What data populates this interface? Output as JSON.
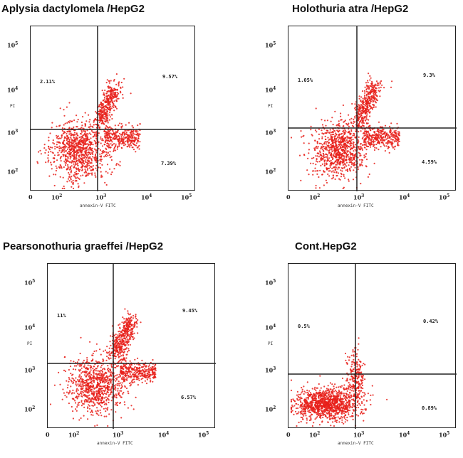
{
  "chart_data": [
    {
      "type": "scatter",
      "title": "Aplysia dactylomela /HepG2",
      "xlabel": "annexin-V FITC",
      "ylabel": "PI",
      "x_scale": "log",
      "y_scale": "log",
      "quadrants": {
        "upper_left": "2.11%",
        "upper_right": "9.57%",
        "lower_right": "7.39%"
      },
      "cluster": "elongated"
    },
    {
      "type": "scatter",
      "title": "Holothuria atra /HepG2",
      "xlabel": "annexin-V FITC",
      "ylabel": "PI",
      "x_scale": "log",
      "y_scale": "log",
      "quadrants": {
        "upper_left": "1.05%",
        "upper_right": "9.3%",
        "lower_right": "4.59%"
      },
      "cluster": "elongated"
    },
    {
      "type": "scatter",
      "title": "Pearsonothuria graeffei /HepG2",
      "xlabel": "annexin-V FITC",
      "ylabel": "PI",
      "x_scale": "log",
      "y_scale": "log",
      "quadrants": {
        "upper_left": "11%",
        "upper_right": "9.45%",
        "lower_right": "6.57%"
      },
      "cluster": "elongated"
    },
    {
      "type": "scatter",
      "title": "Cont.HepG2",
      "xlabel": "annexin-V FITC",
      "ylabel": "PI",
      "x_scale": "log",
      "y_scale": "log",
      "quadrants": {
        "upper_left": "0.5%",
        "upper_right": "0.42%",
        "lower_right": "0.89%"
      },
      "cluster": "compact"
    }
  ],
  "colors": {
    "dots": "#e8201a",
    "axes": "#222222"
  },
  "x_ticks": [
    "0",
    "10",
    "10",
    "10",
    "10"
  ],
  "x_tick_exp": [
    "",
    "2",
    "3",
    "4",
    "5"
  ],
  "y_ticks": [
    "10",
    "10",
    "10",
    "10"
  ],
  "y_tick_exp": [
    "5",
    "4",
    "3",
    "2"
  ]
}
